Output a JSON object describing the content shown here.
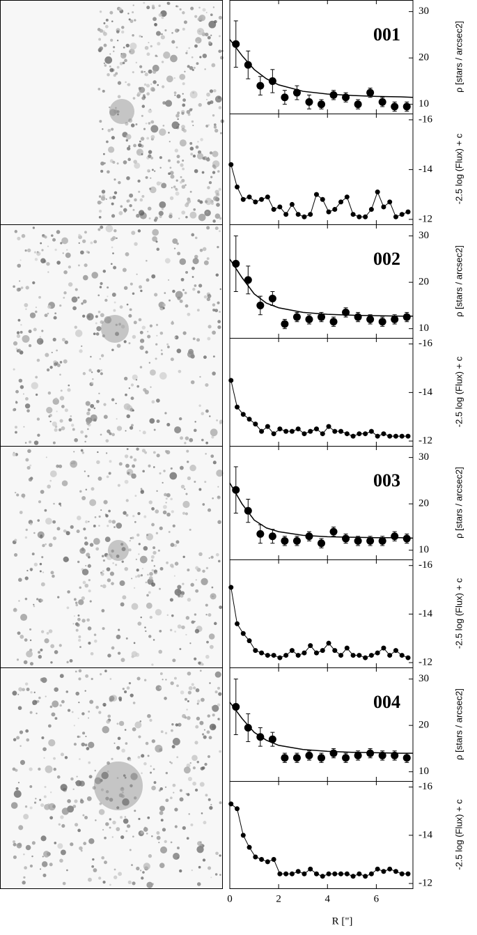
{
  "chart_data": [
    {
      "type": "scatter",
      "title": "001",
      "ylabel": "ρ [stars / arcsec2]",
      "xlim": [
        0,
        7.5
      ],
      "ylim": [
        8,
        32.5
      ],
      "yticks": [
        10,
        20,
        30
      ],
      "x": [
        0.25,
        0.75,
        1.25,
        1.75,
        2.25,
        2.75,
        3.25,
        3.75,
        4.25,
        4.75,
        5.25,
        5.75,
        6.25,
        6.75,
        7.25
      ],
      "values": [
        23,
        18.5,
        14,
        15,
        11.5,
        12.5,
        10.5,
        10,
        12,
        11.5,
        10,
        12.5,
        10.5,
        9.5,
        9.5
      ],
      "errors": [
        5,
        3,
        2,
        2.5,
        1.5,
        1.5,
        1.5,
        1,
        1,
        1,
        1,
        1,
        1,
        1,
        1
      ],
      "fit": {
        "x": [
          0,
          0.5,
          1,
          1.5,
          2,
          3,
          4,
          5,
          6,
          7,
          7.5
        ],
        "values": [
          24,
          20.5,
          17.5,
          15.5,
          14.2,
          12.8,
          12.2,
          11.9,
          11.7,
          11.6,
          11.5
        ]
      }
    },
    {
      "type": "line",
      "ylabel": "-2.5 log (Flux) + c",
      "xlim": [
        0,
        7.5
      ],
      "ylim": [
        -11.8,
        -16.25
      ],
      "yticks": [
        -16,
        -14,
        -12
      ],
      "x": [
        0.05,
        0.3,
        0.55,
        0.8,
        1.05,
        1.3,
        1.55,
        1.8,
        2.05,
        2.3,
        2.55,
        2.8,
        3.05,
        3.3,
        3.55,
        3.8,
        4.05,
        4.3,
        4.55,
        4.8,
        5.05,
        5.3,
        5.55,
        5.8,
        6.05,
        6.3,
        6.55,
        6.8,
        7.05,
        7.3
      ],
      "values": [
        -14.2,
        -13.3,
        -12.8,
        -12.9,
        -12.7,
        -12.8,
        -12.9,
        -12.4,
        -12.5,
        -12.2,
        -12.6,
        -12.2,
        -12.1,
        -12.2,
        -13.0,
        -12.8,
        -12.3,
        -12.4,
        -12.7,
        -12.9,
        -12.2,
        -12.1,
        -12.1,
        -12.4,
        -13.1,
        -12.5,
        -12.7,
        -12.1,
        -12.2,
        -12.3
      ]
    },
    {
      "type": "scatter",
      "title": "002",
      "ylabel": "ρ [stars / arcsec2]",
      "xlim": [
        0,
        7.5
      ],
      "ylim": [
        8,
        32.5
      ],
      "yticks": [
        10,
        20,
        30
      ],
      "x": [
        0.25,
        0.75,
        1.25,
        1.75,
        2.25,
        2.75,
        3.25,
        3.75,
        4.25,
        4.75,
        5.25,
        5.75,
        6.25,
        6.75,
        7.25
      ],
      "values": [
        24,
        20.5,
        15,
        16.5,
        11,
        12.5,
        12,
        12.5,
        11.5,
        13.5,
        12.5,
        12,
        11.5,
        12,
        12.5
      ],
      "errors": [
        6,
        3,
        2,
        1.5,
        1,
        1,
        1,
        1,
        1,
        1,
        1,
        1,
        1,
        1,
        1
      ],
      "fit": {
        "x": [
          0,
          0.5,
          1,
          1.5,
          2,
          3,
          4,
          5,
          6,
          7,
          7.5
        ],
        "values": [
          25,
          21,
          17.5,
          15.5,
          14.5,
          13.5,
          13.1,
          12.9,
          12.8,
          12.7,
          12.7
        ]
      }
    },
    {
      "type": "line",
      "ylabel": "-2.5 log (Flux) + c",
      "xlim": [
        0,
        7.5
      ],
      "ylim": [
        -11.8,
        -16.25
      ],
      "yticks": [
        -16,
        -14,
        -12
      ],
      "x": [
        0.05,
        0.3,
        0.55,
        0.8,
        1.05,
        1.3,
        1.55,
        1.8,
        2.05,
        2.3,
        2.55,
        2.8,
        3.05,
        3.3,
        3.55,
        3.8,
        4.05,
        4.3,
        4.55,
        4.8,
        5.05,
        5.3,
        5.55,
        5.8,
        6.05,
        6.3,
        6.55,
        6.8,
        7.05,
        7.3
      ],
      "values": [
        -14.5,
        -13.4,
        -13.1,
        -12.9,
        -12.7,
        -12.4,
        -12.6,
        -12.3,
        -12.5,
        -12.4,
        -12.4,
        -12.5,
        -12.3,
        -12.4,
        -12.5,
        -12.3,
        -12.6,
        -12.4,
        -12.4,
        -12.3,
        -12.2,
        -12.3,
        -12.3,
        -12.4,
        -12.2,
        -12.3,
        -12.2,
        -12.2,
        -12.2,
        -12.2
      ]
    },
    {
      "type": "scatter",
      "title": "003",
      "ylabel": "ρ [stars / arcsec2]",
      "xlim": [
        0,
        7.5
      ],
      "ylim": [
        8,
        32.5
      ],
      "yticks": [
        10,
        20,
        30
      ],
      "x": [
        0.25,
        0.75,
        1.25,
        1.75,
        2.25,
        2.75,
        3.25,
        3.75,
        4.25,
        4.75,
        5.25,
        5.75,
        6.25,
        6.75,
        7.25
      ],
      "values": [
        23,
        18.5,
        13.5,
        13,
        12,
        12,
        13,
        11.5,
        14,
        12.5,
        12,
        12,
        12,
        13,
        12.5
      ],
      "errors": [
        5,
        2.5,
        2,
        1.5,
        1,
        1,
        1,
        1,
        1,
        1,
        1,
        1,
        1,
        1,
        1
      ],
      "fit": {
        "x": [
          0,
          0.5,
          1,
          1.5,
          2,
          3,
          4,
          5,
          6,
          7,
          7.5
        ],
        "values": [
          24.5,
          20,
          16.5,
          14.8,
          14,
          13.2,
          12.9,
          12.8,
          12.7,
          12.7,
          12.6
        ]
      }
    },
    {
      "type": "line",
      "ylabel": "-2.5 log (Flux) + c",
      "xlim": [
        0,
        7.5
      ],
      "ylim": [
        -11.8,
        -16.25
      ],
      "yticks": [
        -16,
        -14,
        -12
      ],
      "x": [
        0.05,
        0.3,
        0.55,
        0.8,
        1.05,
        1.3,
        1.55,
        1.8,
        2.05,
        2.3,
        2.55,
        2.8,
        3.05,
        3.3,
        3.55,
        3.8,
        4.05,
        4.3,
        4.55,
        4.8,
        5.05,
        5.3,
        5.55,
        5.8,
        6.05,
        6.3,
        6.55,
        6.8,
        7.05,
        7.3
      ],
      "values": [
        -15.1,
        -13.6,
        -13.2,
        -12.9,
        -12.5,
        -12.4,
        -12.3,
        -12.3,
        -12.2,
        -12.3,
        -12.5,
        -12.3,
        -12.4,
        -12.7,
        -12.4,
        -12.5,
        -12.8,
        -12.5,
        -12.3,
        -12.6,
        -12.3,
        -12.3,
        -12.2,
        -12.3,
        -12.4,
        -12.6,
        -12.3,
        -12.5,
        -12.3,
        -12.2
      ]
    },
    {
      "type": "scatter",
      "title": "004",
      "ylabel": "ρ [stars / arcsec2]",
      "xlim": [
        0,
        7.5
      ],
      "ylim": [
        8,
        32.5
      ],
      "yticks": [
        10,
        20,
        30
      ],
      "x": [
        0.25,
        0.75,
        1.25,
        1.75,
        2.25,
        2.75,
        3.25,
        3.75,
        4.25,
        4.75,
        5.25,
        5.75,
        6.25,
        6.75,
        7.25
      ],
      "values": [
        24,
        19.5,
        17.5,
        17,
        13,
        13,
        13.5,
        13,
        14,
        13,
        13.5,
        14,
        13.5,
        13.5,
        13
      ],
      "errors": [
        6,
        3,
        2,
        1.5,
        1,
        1,
        1,
        1,
        1,
        1,
        1,
        1,
        1,
        1,
        1
      ],
      "fit": {
        "x": [
          0,
          0.5,
          1,
          1.5,
          2,
          3,
          4,
          5,
          6,
          7,
          7.5
        ],
        "values": [
          25,
          21.5,
          18.5,
          16.8,
          15.7,
          14.8,
          14.4,
          14.2,
          14.1,
          14,
          14
        ]
      }
    },
    {
      "type": "line",
      "ylabel": "-2.5 log (Flux) + c",
      "xlim": [
        0,
        7.5
      ],
      "ylim": [
        -11.8,
        -16.25
      ],
      "yticks": [
        -16,
        -14,
        -12
      ],
      "xlabel": "R [\"]",
      "xticks": [
        0,
        2,
        4,
        6
      ],
      "x": [
        0.05,
        0.3,
        0.55,
        0.8,
        1.05,
        1.3,
        1.55,
        1.8,
        2.05,
        2.3,
        2.55,
        2.8,
        3.05,
        3.3,
        3.55,
        3.8,
        4.05,
        4.3,
        4.55,
        4.8,
        5.05,
        5.3,
        5.55,
        5.8,
        6.05,
        6.3,
        6.55,
        6.8,
        7.05,
        7.3
      ],
      "values": [
        -15.3,
        -15.1,
        -14.0,
        -13.5,
        -13.1,
        -13.0,
        -12.9,
        -13.0,
        -12.4,
        -12.4,
        -12.4,
        -12.5,
        -12.4,
        -12.6,
        -12.4,
        -12.3,
        -12.4,
        -12.4,
        -12.4,
        -12.4,
        -12.3,
        -12.4,
        -12.3,
        -12.4,
        -12.6,
        -12.5,
        -12.6,
        -12.5,
        -12.4,
        -12.4
      ]
    }
  ]
}
